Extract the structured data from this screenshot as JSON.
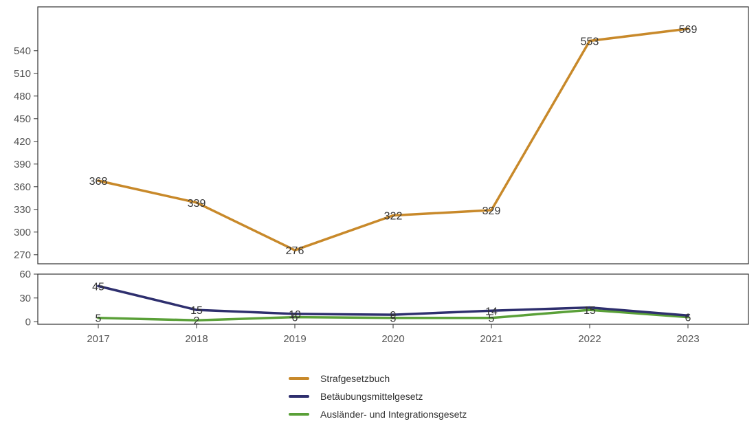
{
  "chart_data": {
    "type": "line",
    "x": [
      "2017",
      "2018",
      "2019",
      "2020",
      "2021",
      "2022",
      "2023"
    ],
    "series": [
      {
        "name": "Strafgesetzbuch",
        "color": "#c8892a",
        "panel": "top",
        "values": [
          368,
          339,
          276,
          322,
          329,
          553,
          569
        ]
      },
      {
        "name": "Betäubungsmittelgesetz",
        "color": "#2e2f6e",
        "panel": "bottom",
        "values": [
          45,
          15,
          10,
          9,
          14,
          18,
          8
        ]
      },
      {
        "name": "Ausländer- und Integrationsgesetz",
        "color": "#5aa038",
        "panel": "bottom",
        "values": [
          5,
          2,
          6,
          5,
          5,
          15,
          6
        ]
      }
    ],
    "data_labels": {
      "Strafgesetzbuch": [
        "368",
        "339",
        "276",
        "322",
        "329",
        "553",
        "569"
      ],
      "Betäubungsmittelgesetz": [
        "45",
        "15",
        "10",
        "9",
        "14",
        "",
        ""
      ],
      "Ausländer- und Integrationsgesetz": [
        "5",
        "2",
        "6",
        "5",
        "5",
        "15",
        "6"
      ]
    },
    "panels": {
      "top": {
        "ylim": [
          258,
          598
        ],
        "yticks": [
          270,
          300,
          330,
          360,
          390,
          420,
          450,
          480,
          510,
          540
        ]
      },
      "bottom": {
        "ylim": [
          -3,
          60
        ],
        "yticks": [
          0,
          30,
          60
        ]
      }
    },
    "legend_position": "bottom-center",
    "grid": false
  },
  "legend": {
    "items": [
      {
        "label": "Strafgesetzbuch",
        "color": "#c8892a"
      },
      {
        "label": "Betäubungsmittelgesetz",
        "color": "#2e2f6e"
      },
      {
        "label": "Ausländer- und Integrationsgesetz",
        "color": "#5aa038"
      }
    ]
  }
}
